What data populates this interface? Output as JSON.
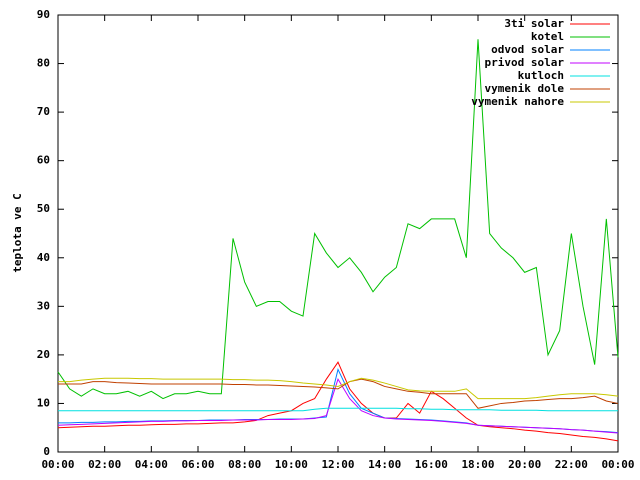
{
  "chart_data": {
    "type": "line",
    "y_label": "teplota ve C",
    "x": [
      0,
      0.5,
      1,
      1.5,
      2,
      2.5,
      3,
      3.5,
      4,
      4.5,
      5,
      5.5,
      6,
      6.5,
      7,
      7.5,
      8,
      8.5,
      9,
      9.5,
      10,
      10.5,
      11,
      11.5,
      12,
      12.5,
      13,
      13.5,
      14,
      14.5,
      15,
      15.5,
      16,
      16.5,
      17,
      17.5,
      18,
      18.5,
      19,
      19.5,
      20,
      20.5,
      21,
      21.5,
      22,
      22.5,
      23,
      23.5,
      24
    ],
    "xlim": [
      0,
      24
    ],
    "xticks": [
      {
        "value": 0,
        "label": "00:00"
      },
      {
        "value": 2,
        "label": "02:00"
      },
      {
        "value": 4,
        "label": "04:00"
      },
      {
        "value": 6,
        "label": "06:00"
      },
      {
        "value": 8,
        "label": "08:00"
      },
      {
        "value": 10,
        "label": "10:00"
      },
      {
        "value": 12,
        "label": "12:00"
      },
      {
        "value": 14,
        "label": "14:00"
      },
      {
        "value": 16,
        "label": "16:00"
      },
      {
        "value": 18,
        "label": "18:00"
      },
      {
        "value": 20,
        "label": "20:00"
      },
      {
        "value": 22,
        "label": "22:00"
      },
      {
        "value": 24,
        "label": "00:00"
      }
    ],
    "ylim": [
      0,
      90
    ],
    "yticks": [
      0,
      10,
      20,
      30,
      40,
      50,
      60,
      70,
      80,
      90
    ],
    "grid": false,
    "legend": "top-right",
    "series": [
      {
        "name": "3ti solar",
        "color": "#ff0000",
        "values": [
          5,
          5.1,
          5.2,
          5.3,
          5.3,
          5.4,
          5.5,
          5.5,
          5.6,
          5.7,
          5.7,
          5.8,
          5.8,
          5.9,
          6,
          6,
          6.2,
          6.5,
          7.5,
          8,
          8.5,
          10,
          11,
          15,
          18.5,
          13,
          10,
          8,
          7,
          7,
          10,
          8,
          12.5,
          11,
          9,
          7,
          5.5,
          5.2,
          5,
          4.8,
          4.5,
          4.3,
          4,
          3.8,
          3.5,
          3.2,
          3,
          2.7,
          2.3
        ]
      },
      {
        "name": "kotel",
        "color": "#00c000",
        "values": [
          16.5,
          13,
          11.5,
          13,
          12,
          12,
          12.5,
          11.5,
          12.5,
          11,
          12,
          12,
          12.5,
          12,
          12,
          44,
          35,
          30,
          31,
          31,
          29,
          28,
          45,
          41,
          38,
          40,
          37,
          33,
          36,
          38,
          47,
          46,
          48,
          48,
          48,
          40,
          85,
          45,
          42,
          40,
          37,
          38,
          20,
          25,
          45,
          30,
          18,
          48,
          19.5
        ]
      },
      {
        "name": "odvod solar",
        "color": "#0080ff",
        "values": [
          6,
          6,
          6.1,
          6.1,
          6.2,
          6.2,
          6.3,
          6.3,
          6.4,
          6.4,
          6.5,
          6.5,
          6.5,
          6.6,
          6.6,
          6.6,
          6.7,
          6.7,
          6.7,
          6.8,
          6.8,
          6.8,
          7,
          7.2,
          17,
          12,
          9,
          8,
          7,
          6.9,
          6.8,
          6.7,
          6.6,
          6.4,
          6.2,
          6,
          5.5,
          5.4,
          5.3,
          5.2,
          5.1,
          5,
          4.9,
          4.8,
          4.6,
          4.5,
          4.3,
          4.2,
          4
        ]
      },
      {
        "name": "privod solar",
        "color": "#c000ff",
        "values": [
          5.5,
          5.6,
          5.7,
          5.8,
          5.9,
          6,
          6.1,
          6.2,
          6.3,
          6.3,
          6.4,
          6.4,
          6.5,
          6.5,
          6.5,
          6.6,
          6.6,
          6.6,
          6.7,
          6.7,
          6.7,
          6.8,
          6.9,
          7.5,
          15,
          11,
          8.5,
          7.5,
          7,
          6.8,
          6.7,
          6.6,
          6.5,
          6.3,
          6.1,
          5.9,
          5.5,
          5.4,
          5.3,
          5.2,
          5.1,
          5,
          4.9,
          4.8,
          4.6,
          4.5,
          4.3,
          4.1,
          3.9
        ]
      },
      {
        "name": "kutloch",
        "color": "#00e0e0",
        "values": [
          8.5,
          8.5,
          8.5,
          8.5,
          8.5,
          8.5,
          8.5,
          8.5,
          8.5,
          8.5,
          8.5,
          8.5,
          8.5,
          8.5,
          8.5,
          8.5,
          8.5,
          8.5,
          8.5,
          8.5,
          8.5,
          8.5,
          8.8,
          9,
          9,
          9,
          9,
          9,
          9,
          9,
          8.9,
          8.9,
          8.8,
          8.8,
          8.7,
          8.7,
          8.7,
          8.7,
          8.6,
          8.6,
          8.6,
          8.6,
          8.5,
          8.5,
          8.5,
          8.5,
          8.5,
          8.5,
          8.5
        ]
      },
      {
        "name": "vymenik dole",
        "color": "#c04000",
        "values": [
          14,
          14,
          14,
          14.5,
          14.5,
          14.3,
          14.2,
          14.1,
          14,
          14,
          14,
          14,
          14,
          14,
          14,
          13.9,
          13.9,
          13.8,
          13.8,
          13.7,
          13.6,
          13.5,
          13.4,
          13.2,
          13,
          14.5,
          15,
          14.5,
          13.5,
          13,
          12.5,
          12.3,
          12,
          12,
          12,
          12,
          9,
          9.5,
          10,
          10.2,
          10.5,
          10.6,
          10.8,
          11,
          11,
          11.2,
          11.5,
          10.5,
          10
        ]
      },
      {
        "name": "vymenik nahore",
        "color": "#c8c800",
        "values": [
          14.5,
          14.5,
          14.8,
          15,
          15.2,
          15.2,
          15.2,
          15.1,
          15.1,
          15,
          15,
          15,
          15,
          15,
          15,
          14.9,
          14.9,
          14.8,
          14.8,
          14.7,
          14.5,
          14.2,
          14,
          13.8,
          13.5,
          14.5,
          15.2,
          14.8,
          14.2,
          13.5,
          12.8,
          12.6,
          12.5,
          12.5,
          12.5,
          13,
          11,
          11,
          11,
          11,
          11,
          11.2,
          11.5,
          11.8,
          12,
          12,
          12,
          11.8,
          11.5
        ]
      }
    ]
  }
}
